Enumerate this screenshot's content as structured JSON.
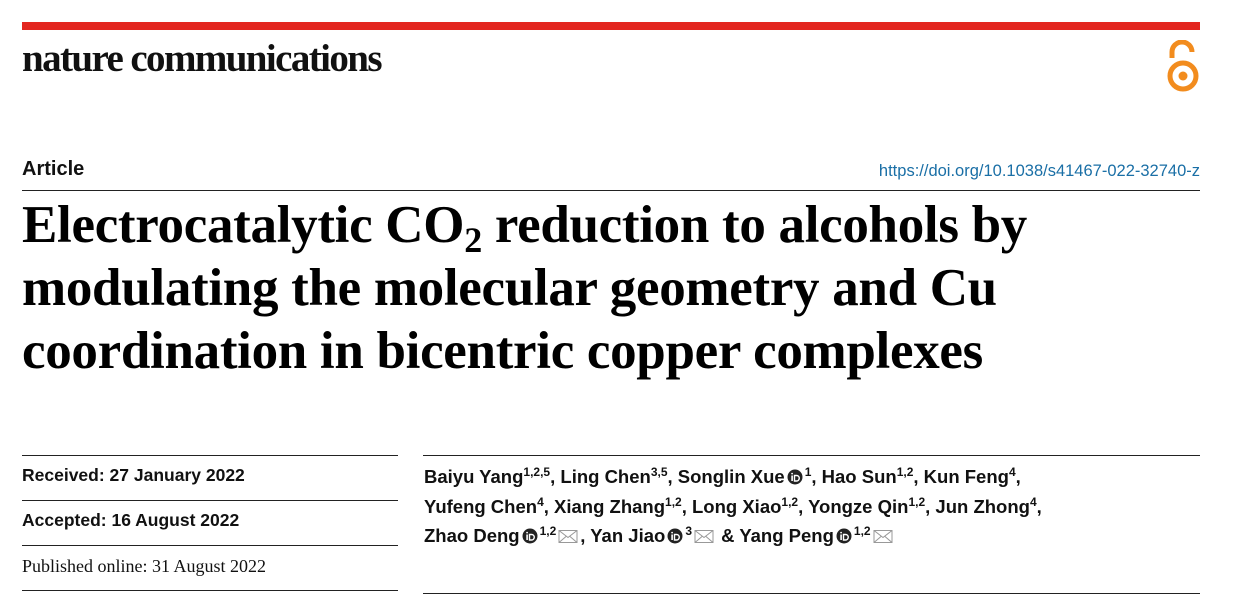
{
  "journal": "nature communications",
  "article_type": "Article",
  "doi": "https://doi.org/10.1038/s41467-022-32740-z",
  "title": {
    "lines": [
      [
        "Electrocatalytic CO",
        "2",
        " reduction to alcohols by"
      ],
      [
        "modulating the molecular geometry and Cu"
      ],
      [
        "coordination in bicentric copper complexes"
      ]
    ]
  },
  "dates": [
    "Received: 27 January 2022",
    "Accepted: 16 August 2022",
    "Published online: 31 August 2022"
  ],
  "authors": {
    "lines": [
      [
        {
          "name": "Baiyu Yang",
          "sup": "1,2,5",
          "orcid": false,
          "corresponding": false,
          "sep": ", "
        },
        {
          "name": "Ling Chen",
          "sup": "3,5",
          "orcid": false,
          "corresponding": false,
          "sep": ", "
        },
        {
          "name": "Songlin Xue",
          "sup": "1",
          "orcid": true,
          "corresponding": false,
          "sep": ", "
        },
        {
          "name": "Hao Sun",
          "sup": "1,2",
          "orcid": false,
          "corresponding": false,
          "sep": ", "
        },
        {
          "name": "Kun Feng",
          "sup": "4",
          "orcid": false,
          "corresponding": false,
          "sep": ","
        }
      ],
      [
        {
          "name": "Yufeng Chen",
          "sup": "4",
          "orcid": false,
          "corresponding": false,
          "sep": ", "
        },
        {
          "name": "Xiang Zhang",
          "sup": "1,2",
          "orcid": false,
          "corresponding": false,
          "sep": ", "
        },
        {
          "name": "Long Xiao",
          "sup": "1,2",
          "orcid": false,
          "corresponding": false,
          "sep": ", "
        },
        {
          "name": "Yongze Qin",
          "sup": "1,2",
          "orcid": false,
          "corresponding": false,
          "sep": ", "
        },
        {
          "name": "Jun Zhong",
          "sup": "4",
          "orcid": false,
          "corresponding": false,
          "sep": ","
        }
      ],
      [
        {
          "name": "Zhao Deng",
          "sup": "1,2",
          "orcid": true,
          "corresponding": true,
          "sep": ", "
        },
        {
          "name": "Yan Jiao",
          "sup": "3",
          "orcid": true,
          "corresponding": true,
          "sep": " & "
        },
        {
          "name": "Yang Peng",
          "sup": "1,2",
          "orcid": true,
          "corresponding": true,
          "sep": ""
        }
      ]
    ]
  }
}
